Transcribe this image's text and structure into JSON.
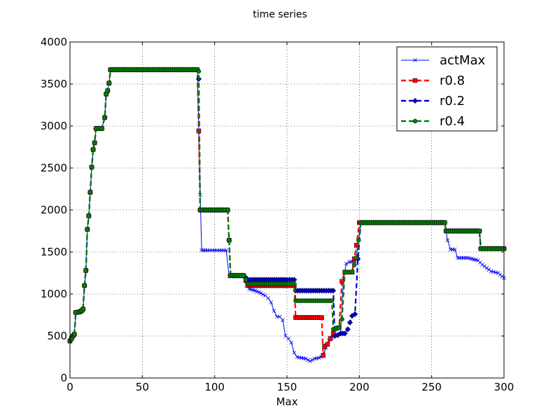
{
  "chart_data": {
    "type": "line",
    "title": "time series",
    "xlabel": "Max",
    "ylabel": "",
    "xlim": [
      0,
      300
    ],
    "ylim": [
      0,
      4000
    ],
    "xticks": [
      0,
      50,
      100,
      150,
      200,
      250,
      300
    ],
    "yticks": [
      0,
      500,
      1000,
      1500,
      2000,
      2500,
      3000,
      3500,
      4000
    ],
    "grid": true,
    "legend_position": "top-right",
    "series": [
      {
        "name": "actMax",
        "color": "#0000ff",
        "line_style": "solid",
        "marker": "x",
        "points": [
          [
            0,
            440
          ],
          [
            1,
            470
          ],
          [
            2,
            500
          ],
          [
            3,
            520
          ],
          [
            4,
            780
          ],
          [
            6,
            785
          ],
          [
            7,
            790
          ],
          [
            8,
            800
          ],
          [
            9,
            820
          ],
          [
            10,
            1100
          ],
          [
            11,
            1280
          ],
          [
            12,
            1770
          ],
          [
            13,
            1930
          ],
          [
            14,
            2210
          ],
          [
            15,
            2510
          ],
          [
            16,
            2720
          ],
          [
            17,
            2800
          ],
          [
            18,
            2970
          ],
          [
            20,
            2970
          ],
          [
            22,
            2970
          ],
          [
            24,
            3100
          ],
          [
            25,
            3380
          ],
          [
            26,
            3420
          ],
          [
            27,
            3510
          ],
          [
            28,
            3670
          ],
          [
            40,
            3670
          ],
          [
            60,
            3670
          ],
          [
            80,
            3670
          ],
          [
            88,
            3670
          ],
          [
            89,
            2950
          ],
          [
            90,
            2180
          ],
          [
            91,
            1520
          ],
          [
            95,
            1520
          ],
          [
            100,
            1520
          ],
          [
            108,
            1520
          ],
          [
            110,
            1210
          ],
          [
            115,
            1210
          ],
          [
            120,
            1210
          ],
          [
            122,
            1100
          ],
          [
            124,
            1060
          ],
          [
            128,
            1040
          ],
          [
            132,
            1010
          ],
          [
            135,
            980
          ],
          [
            137,
            950
          ],
          [
            139,
            900
          ],
          [
            141,
            800
          ],
          [
            143,
            730
          ],
          [
            145,
            730
          ],
          [
            147,
            690
          ],
          [
            149,
            500
          ],
          [
            151,
            470
          ],
          [
            153,
            420
          ],
          [
            155,
            300
          ],
          [
            157,
            250
          ],
          [
            160,
            240
          ],
          [
            163,
            230
          ],
          [
            166,
            200
          ],
          [
            169,
            230
          ],
          [
            172,
            240
          ],
          [
            175,
            260
          ],
          [
            177,
            360
          ],
          [
            179,
            450
          ],
          [
            181,
            480
          ],
          [
            183,
            530
          ],
          [
            185,
            510
          ],
          [
            187,
            530
          ],
          [
            189,
            1180
          ],
          [
            191,
            1360
          ],
          [
            193,
            1380
          ],
          [
            197,
            1390
          ],
          [
            199,
            1550
          ],
          [
            201,
            1850
          ],
          [
            210,
            1850
          ],
          [
            230,
            1850
          ],
          [
            250,
            1850
          ],
          [
            259,
            1850
          ],
          [
            261,
            1640
          ],
          [
            263,
            1530
          ],
          [
            266,
            1530
          ],
          [
            268,
            1430
          ],
          [
            275,
            1430
          ],
          [
            282,
            1400
          ],
          [
            285,
            1350
          ],
          [
            288,
            1310
          ],
          [
            291,
            1270
          ],
          [
            296,
            1250
          ],
          [
            300,
            1190
          ]
        ]
      },
      {
        "name": "r0.8",
        "color": "#ff0000",
        "line_style": "dashed",
        "marker": "square",
        "points": [
          [
            0,
            440
          ],
          [
            1,
            470
          ],
          [
            2,
            500
          ],
          [
            3,
            520
          ],
          [
            4,
            780
          ],
          [
            6,
            785
          ],
          [
            7,
            790
          ],
          [
            8,
            800
          ],
          [
            9,
            820
          ],
          [
            10,
            1100
          ],
          [
            11,
            1280
          ],
          [
            12,
            1770
          ],
          [
            13,
            1930
          ],
          [
            14,
            2210
          ],
          [
            15,
            2510
          ],
          [
            16,
            2720
          ],
          [
            17,
            2800
          ],
          [
            18,
            2970
          ],
          [
            20,
            2970
          ],
          [
            22,
            2970
          ],
          [
            24,
            3100
          ],
          [
            25,
            3380
          ],
          [
            26,
            3420
          ],
          [
            27,
            3510
          ],
          [
            28,
            3670
          ],
          [
            40,
            3670
          ],
          [
            60,
            3670
          ],
          [
            80,
            3670
          ],
          [
            88,
            3670
          ],
          [
            89,
            2940
          ],
          [
            90,
            2000
          ],
          [
            100,
            2000
          ],
          [
            109,
            2000
          ],
          [
            110,
            1640
          ],
          [
            111,
            1220
          ],
          [
            115,
            1220
          ],
          [
            120,
            1220
          ],
          [
            123,
            1100
          ],
          [
            130,
            1100
          ],
          [
            140,
            1100
          ],
          [
            150,
            1100
          ],
          [
            155,
            1100
          ],
          [
            156,
            720
          ],
          [
            165,
            720
          ],
          [
            174,
            720
          ],
          [
            175,
            270
          ],
          [
            176,
            380
          ],
          [
            178,
            400
          ],
          [
            180,
            470
          ],
          [
            182,
            530
          ],
          [
            184,
            590
          ],
          [
            186,
            600
          ],
          [
            188,
            1150
          ],
          [
            190,
            1260
          ],
          [
            195,
            1260
          ],
          [
            198,
            1580
          ],
          [
            200,
            1850
          ],
          [
            220,
            1850
          ],
          [
            240,
            1850
          ],
          [
            259,
            1850
          ],
          [
            260,
            1750
          ],
          [
            270,
            1750
          ],
          [
            283,
            1750
          ],
          [
            284,
            1540
          ],
          [
            290,
            1540
          ],
          [
            300,
            1540
          ]
        ]
      },
      {
        "name": "r0.2",
        "color": "#0000cc",
        "line_style": "dashed",
        "marker": "diamond",
        "points": [
          [
            0,
            440
          ],
          [
            1,
            470
          ],
          [
            2,
            500
          ],
          [
            3,
            520
          ],
          [
            4,
            780
          ],
          [
            6,
            785
          ],
          [
            7,
            790
          ],
          [
            8,
            800
          ],
          [
            9,
            820
          ],
          [
            10,
            1100
          ],
          [
            11,
            1280
          ],
          [
            12,
            1770
          ],
          [
            13,
            1930
          ],
          [
            14,
            2210
          ],
          [
            15,
            2510
          ],
          [
            16,
            2720
          ],
          [
            17,
            2800
          ],
          [
            18,
            2970
          ],
          [
            20,
            2970
          ],
          [
            22,
            2970
          ],
          [
            24,
            3100
          ],
          [
            25,
            3380
          ],
          [
            26,
            3420
          ],
          [
            27,
            3510
          ],
          [
            28,
            3670
          ],
          [
            40,
            3670
          ],
          [
            60,
            3670
          ],
          [
            80,
            3670
          ],
          [
            88,
            3670
          ],
          [
            89,
            3560
          ],
          [
            90,
            2000
          ],
          [
            100,
            2000
          ],
          [
            109,
            2000
          ],
          [
            110,
            1640
          ],
          [
            111,
            1220
          ],
          [
            115,
            1220
          ],
          [
            120,
            1220
          ],
          [
            123,
            1170
          ],
          [
            130,
            1170
          ],
          [
            140,
            1170
          ],
          [
            150,
            1170
          ],
          [
            155,
            1170
          ],
          [
            156,
            1040
          ],
          [
            165,
            1040
          ],
          [
            174,
            1040
          ],
          [
            182,
            1040
          ],
          [
            183,
            500
          ],
          [
            185,
            510
          ],
          [
            187,
            530
          ],
          [
            190,
            530
          ],
          [
            192,
            580
          ],
          [
            195,
            740
          ],
          [
            197,
            760
          ],
          [
            199,
            1420
          ],
          [
            201,
            1850
          ],
          [
            220,
            1850
          ],
          [
            240,
            1850
          ],
          [
            259,
            1850
          ],
          [
            260,
            1750
          ],
          [
            270,
            1750
          ],
          [
            283,
            1750
          ],
          [
            284,
            1540
          ],
          [
            290,
            1540
          ],
          [
            300,
            1540
          ]
        ]
      },
      {
        "name": "r0.4",
        "color": "#008000",
        "line_style": "dashed",
        "marker": "circle",
        "points": [
          [
            0,
            440
          ],
          [
            1,
            470
          ],
          [
            2,
            500
          ],
          [
            3,
            520
          ],
          [
            4,
            780
          ],
          [
            6,
            785
          ],
          [
            7,
            790
          ],
          [
            8,
            800
          ],
          [
            9,
            820
          ],
          [
            10,
            1100
          ],
          [
            11,
            1280
          ],
          [
            12,
            1770
          ],
          [
            13,
            1930
          ],
          [
            14,
            2210
          ],
          [
            15,
            2510
          ],
          [
            16,
            2720
          ],
          [
            17,
            2800
          ],
          [
            18,
            2970
          ],
          [
            20,
            2970
          ],
          [
            22,
            2970
          ],
          [
            24,
            3100
          ],
          [
            25,
            3380
          ],
          [
            26,
            3420
          ],
          [
            27,
            3510
          ],
          [
            28,
            3670
          ],
          [
            40,
            3670
          ],
          [
            60,
            3670
          ],
          [
            80,
            3670
          ],
          [
            88,
            3670
          ],
          [
            89,
            3650
          ],
          [
            90,
            2000
          ],
          [
            100,
            2000
          ],
          [
            109,
            2000
          ],
          [
            110,
            1640
          ],
          [
            111,
            1220
          ],
          [
            115,
            1220
          ],
          [
            120,
            1220
          ],
          [
            123,
            1120
          ],
          [
            130,
            1120
          ],
          [
            140,
            1120
          ],
          [
            150,
            1120
          ],
          [
            155,
            1120
          ],
          [
            156,
            920
          ],
          [
            165,
            920
          ],
          [
            174,
            920
          ],
          [
            181,
            920
          ],
          [
            182,
            580
          ],
          [
            186,
            600
          ],
          [
            188,
            700
          ],
          [
            190,
            1260
          ],
          [
            195,
            1260
          ],
          [
            198,
            1430
          ],
          [
            201,
            1850
          ],
          [
            220,
            1850
          ],
          [
            240,
            1850
          ],
          [
            259,
            1850
          ],
          [
            260,
            1750
          ],
          [
            270,
            1750
          ],
          [
            283,
            1750
          ],
          [
            284,
            1540
          ],
          [
            290,
            1540
          ],
          [
            300,
            1540
          ]
        ]
      }
    ]
  }
}
